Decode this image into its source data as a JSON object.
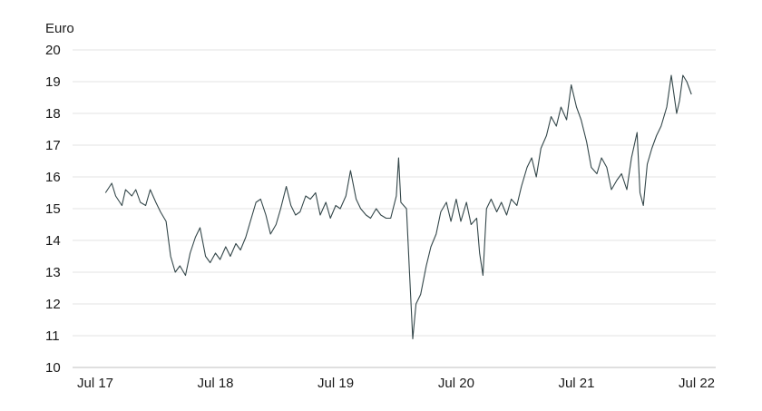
{
  "chart_data": {
    "type": "line",
    "title": "",
    "ylabel": "Euro",
    "xlabel": "",
    "ylim": [
      10,
      20
    ],
    "yticks": [
      10,
      11,
      12,
      13,
      14,
      15,
      16,
      17,
      18,
      19,
      20
    ],
    "xlim": [
      "2017-07",
      "2022-07"
    ],
    "xticks": [
      {
        "x": "2017-07",
        "label": "Jul 17"
      },
      {
        "x": "2018-07",
        "label": "Jul 18"
      },
      {
        "x": "2019-07",
        "label": "Jul 19"
      },
      {
        "x": "2020-07",
        "label": "Jul 20"
      },
      {
        "x": "2021-07",
        "label": "Jul 21"
      },
      {
        "x": "2022-07",
        "label": "Jul 22"
      }
    ],
    "grid": true,
    "line_color": "#34474a",
    "series": [
      {
        "points": [
          [
            "2017-08-01",
            15.5
          ],
          [
            "2017-08-20",
            15.8
          ],
          [
            "2017-09-01",
            15.4
          ],
          [
            "2017-09-20",
            15.1
          ],
          [
            "2017-10-01",
            15.6
          ],
          [
            "2017-10-20",
            15.4
          ],
          [
            "2017-11-01",
            15.6
          ],
          [
            "2017-11-15",
            15.2
          ],
          [
            "2017-12-01",
            15.1
          ],
          [
            "2017-12-15",
            15.6
          ],
          [
            "2018-01-01",
            15.2
          ],
          [
            "2018-01-15",
            14.9
          ],
          [
            "2018-02-01",
            14.6
          ],
          [
            "2018-02-15",
            13.5
          ],
          [
            "2018-03-01",
            13.0
          ],
          [
            "2018-03-15",
            13.2
          ],
          [
            "2018-04-01",
            12.9
          ],
          [
            "2018-04-15",
            13.6
          ],
          [
            "2018-05-01",
            14.1
          ],
          [
            "2018-05-15",
            14.4
          ],
          [
            "2018-06-01",
            13.5
          ],
          [
            "2018-06-15",
            13.3
          ],
          [
            "2018-07-01",
            13.6
          ],
          [
            "2018-07-15",
            13.4
          ],
          [
            "2018-08-01",
            13.8
          ],
          [
            "2018-08-15",
            13.5
          ],
          [
            "2018-09-01",
            13.9
          ],
          [
            "2018-09-15",
            13.7
          ],
          [
            "2018-10-01",
            14.1
          ],
          [
            "2018-10-15",
            14.6
          ],
          [
            "2018-11-01",
            15.2
          ],
          [
            "2018-11-15",
            15.3
          ],
          [
            "2018-12-01",
            14.8
          ],
          [
            "2018-12-15",
            14.2
          ],
          [
            "2019-01-01",
            14.5
          ],
          [
            "2019-01-15",
            15.0
          ],
          [
            "2019-02-01",
            15.7
          ],
          [
            "2019-02-15",
            15.1
          ],
          [
            "2019-03-01",
            14.8
          ],
          [
            "2019-03-15",
            14.9
          ],
          [
            "2019-04-01",
            15.4
          ],
          [
            "2019-04-15",
            15.3
          ],
          [
            "2019-05-01",
            15.5
          ],
          [
            "2019-05-15",
            14.8
          ],
          [
            "2019-06-01",
            15.2
          ],
          [
            "2019-06-15",
            14.7
          ],
          [
            "2019-07-01",
            15.1
          ],
          [
            "2019-07-15",
            15.0
          ],
          [
            "2019-08-01",
            15.4
          ],
          [
            "2019-08-15",
            16.2
          ],
          [
            "2019-09-01",
            15.3
          ],
          [
            "2019-09-15",
            15.0
          ],
          [
            "2019-10-01",
            14.8
          ],
          [
            "2019-10-15",
            14.7
          ],
          [
            "2019-11-01",
            15.0
          ],
          [
            "2019-11-15",
            14.8
          ],
          [
            "2019-12-01",
            14.7
          ],
          [
            "2019-12-15",
            14.7
          ],
          [
            "2020-01-01",
            15.4
          ],
          [
            "2020-01-08",
            16.6
          ],
          [
            "2020-01-15",
            15.2
          ],
          [
            "2020-02-01",
            15.0
          ],
          [
            "2020-02-10",
            13.0
          ],
          [
            "2020-02-20",
            10.9
          ],
          [
            "2020-03-01",
            12.0
          ],
          [
            "2020-03-15",
            12.3
          ],
          [
            "2020-04-01",
            13.2
          ],
          [
            "2020-04-15",
            13.8
          ],
          [
            "2020-05-01",
            14.2
          ],
          [
            "2020-05-15",
            14.9
          ],
          [
            "2020-06-01",
            15.2
          ],
          [
            "2020-06-15",
            14.6
          ],
          [
            "2020-07-01",
            15.3
          ],
          [
            "2020-07-15",
            14.6
          ],
          [
            "2020-08-01",
            15.2
          ],
          [
            "2020-08-15",
            14.5
          ],
          [
            "2020-09-01",
            14.7
          ],
          [
            "2020-09-10",
            13.6
          ],
          [
            "2020-09-20",
            12.9
          ],
          [
            "2020-10-01",
            15.0
          ],
          [
            "2020-10-15",
            15.3
          ],
          [
            "2020-11-01",
            14.9
          ],
          [
            "2020-11-15",
            15.2
          ],
          [
            "2020-12-01",
            14.8
          ],
          [
            "2020-12-15",
            15.3
          ],
          [
            "2021-01-01",
            15.1
          ],
          [
            "2021-01-15",
            15.7
          ],
          [
            "2021-02-01",
            16.3
          ],
          [
            "2021-02-15",
            16.6
          ],
          [
            "2021-03-01",
            16.0
          ],
          [
            "2021-03-15",
            16.9
          ],
          [
            "2021-04-01",
            17.3
          ],
          [
            "2021-04-15",
            17.9
          ],
          [
            "2021-05-01",
            17.6
          ],
          [
            "2021-05-15",
            18.2
          ],
          [
            "2021-06-01",
            17.8
          ],
          [
            "2021-06-15",
            18.9
          ],
          [
            "2021-07-01",
            18.2
          ],
          [
            "2021-07-15",
            17.8
          ],
          [
            "2021-08-01",
            17.1
          ],
          [
            "2021-08-15",
            16.3
          ],
          [
            "2021-09-01",
            16.1
          ],
          [
            "2021-09-15",
            16.6
          ],
          [
            "2021-10-01",
            16.3
          ],
          [
            "2021-10-15",
            15.6
          ],
          [
            "2021-11-01",
            15.9
          ],
          [
            "2021-11-15",
            16.1
          ],
          [
            "2021-12-01",
            15.6
          ],
          [
            "2021-12-15",
            16.6
          ],
          [
            "2022-01-01",
            17.4
          ],
          [
            "2022-01-10",
            15.5
          ],
          [
            "2022-01-20",
            15.1
          ],
          [
            "2022-02-01",
            16.4
          ],
          [
            "2022-02-15",
            16.9
          ],
          [
            "2022-03-01",
            17.3
          ],
          [
            "2022-03-15",
            17.6
          ],
          [
            "2022-04-01",
            18.2
          ],
          [
            "2022-04-15",
            19.2
          ],
          [
            "2022-05-01",
            18.0
          ],
          [
            "2022-05-10",
            18.4
          ],
          [
            "2022-05-20",
            19.2
          ],
          [
            "2022-06-01",
            19.0
          ],
          [
            "2022-06-15",
            18.6
          ]
        ]
      }
    ]
  }
}
